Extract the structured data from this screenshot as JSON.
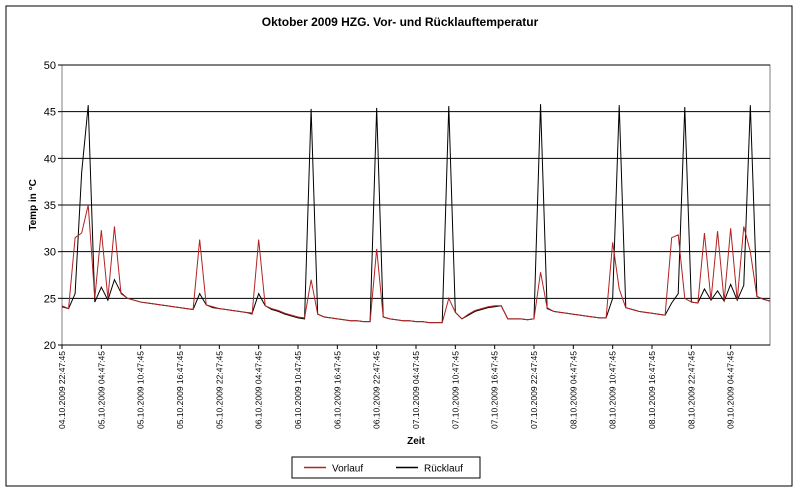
{
  "chart_data": {
    "type": "line",
    "title": "Oktober 2009 HZG. Vor- und Rücklauftemperatur",
    "x_label": "Zeit",
    "y_label": "Temp in °C",
    "categories": [
      "04.10.2009 22:47:45",
      null,
      null,
      null,
      null,
      null,
      "05.10.2009 04:47:45",
      null,
      null,
      null,
      null,
      null,
      "05.10.2009 10:47:45",
      null,
      null,
      null,
      null,
      null,
      "05.10.2009 16:47:45",
      null,
      null,
      null,
      null,
      null,
      "05.10.2009 22:47:45",
      null,
      null,
      null,
      null,
      null,
      "06.10.2009 04:47:45",
      null,
      null,
      null,
      null,
      null,
      "06.10.2009 10:47:45",
      null,
      null,
      null,
      null,
      null,
      "06.10.2009 16:47:45",
      null,
      null,
      null,
      null,
      null,
      "06.10.2009 22:47:45",
      null,
      null,
      null,
      null,
      null,
      "07.10.2009 04:47:45",
      null,
      null,
      null,
      null,
      null,
      "07.10.2009 10:47:45",
      null,
      null,
      null,
      null,
      null,
      "07.10.2009 16:47:45",
      null,
      null,
      null,
      null,
      null,
      "07.10.2009 22:47:45",
      null,
      null,
      null,
      null,
      null,
      "08.10.2009 04:47:45",
      null,
      null,
      null,
      null,
      null,
      "08.10.2009 10:47:45",
      null,
      null,
      null,
      null,
      null,
      "08.10.2009 16:47:45",
      null,
      null,
      null,
      null,
      null,
      "08.10.2009 22:47:45",
      null,
      null,
      null,
      null,
      null,
      "09.10.2009 04:47:45",
      null,
      null,
      null,
      null,
      null,
      null
    ],
    "series": [
      {
        "name": "Vorlauf",
        "color": "#b22222",
        "values": [
          24.2,
          23.9,
          31.5,
          32.0,
          35.0,
          25.0,
          32.3,
          25.0,
          32.7,
          25.5,
          25.0,
          24.8,
          24.6,
          24.5,
          24.4,
          24.3,
          24.2,
          24.1,
          24.0,
          23.9,
          23.8,
          31.3,
          24.3,
          24.1,
          23.9,
          23.8,
          23.7,
          23.6,
          23.5,
          23.3,
          31.3,
          24.2,
          23.9,
          23.7,
          23.4,
          23.2,
          23.0,
          22.9,
          27.0,
          23.3,
          23.0,
          22.9,
          22.8,
          22.7,
          22.6,
          22.6,
          22.5,
          22.5,
          30.3,
          23.0,
          22.8,
          22.7,
          22.6,
          22.6,
          22.5,
          22.5,
          22.4,
          22.4,
          22.4,
          25.0,
          23.5,
          22.8,
          23.3,
          23.7,
          23.9,
          24.1,
          24.2,
          24.2,
          22.8,
          22.8,
          22.8,
          22.7,
          22.8,
          27.8,
          24.0,
          23.6,
          23.5,
          23.4,
          23.3,
          23.2,
          23.1,
          23.0,
          22.9,
          22.9,
          31.0,
          26.0,
          24.0,
          23.8,
          23.6,
          23.5,
          23.4,
          23.3,
          23.2,
          31.5,
          31.8,
          25.0,
          24.6,
          24.5,
          32.0,
          24.8,
          32.2,
          24.7,
          32.5,
          24.8,
          32.7,
          30.0,
          25.2,
          24.9,
          24.7
        ]
      },
      {
        "name": "Rücklauf",
        "color": "#000000",
        "values": [
          24.1,
          23.9,
          25.5,
          38.5,
          45.7,
          24.6,
          26.2,
          24.8,
          27.0,
          25.6,
          25.0,
          24.8,
          24.6,
          24.5,
          24.4,
          24.3,
          24.2,
          24.1,
          24.0,
          23.9,
          23.8,
          25.5,
          24.3,
          24.0,
          23.9,
          23.8,
          23.7,
          23.6,
          23.5,
          23.4,
          25.5,
          24.2,
          23.8,
          23.6,
          23.3,
          23.1,
          22.9,
          22.8,
          45.3,
          23.3,
          23.0,
          22.9,
          22.8,
          22.7,
          22.6,
          22.6,
          22.5,
          22.5,
          45.4,
          23.0,
          22.8,
          22.7,
          22.6,
          22.6,
          22.5,
          22.5,
          22.4,
          22.4,
          22.4,
          45.6,
          23.5,
          22.8,
          23.2,
          23.6,
          23.8,
          24.0,
          24.1,
          24.2,
          22.8,
          22.8,
          22.8,
          22.7,
          22.8,
          45.8,
          23.9,
          23.6,
          23.5,
          23.4,
          23.3,
          23.2,
          23.1,
          23.0,
          22.9,
          22.9,
          25.0,
          45.7,
          24.0,
          23.8,
          23.6,
          23.5,
          23.4,
          23.3,
          23.2,
          24.5,
          25.5,
          45.5,
          24.6,
          24.5,
          26.0,
          24.8,
          25.8,
          24.7,
          26.5,
          24.8,
          26.4,
          45.7,
          25.2,
          24.9,
          24.7
        ]
      }
    ],
    "ylim": [
      20,
      50
    ],
    "yticks": [
      20,
      25,
      30,
      35,
      40,
      45,
      50
    ],
    "grid": true,
    "legend": "bottom"
  }
}
